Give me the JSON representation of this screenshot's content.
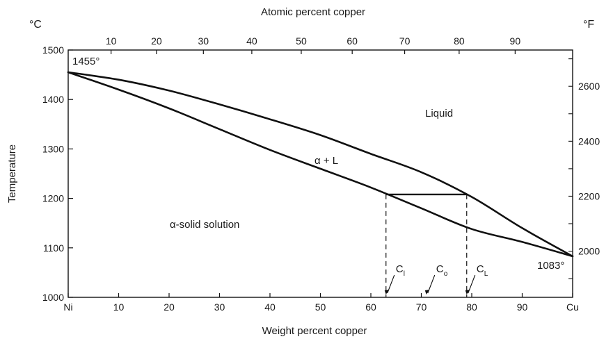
{
  "chart_data": {
    "type": "line",
    "title": "",
    "xlabel_bottom": "Weight percent copper",
    "xlabel_top": "Atomic percent copper",
    "ylabel_left": "Temperature",
    "unit_left": "°C",
    "unit_right": "°F",
    "xlim": [
      0,
      100
    ],
    "ylim": [
      1000,
      1500
    ],
    "x_ticks_bottom": [
      {
        "value": 0,
        "label": "Ni"
      },
      {
        "value": 10,
        "label": "10"
      },
      {
        "value": 20,
        "label": "20"
      },
      {
        "value": 30,
        "label": "30"
      },
      {
        "value": 40,
        "label": "40"
      },
      {
        "value": 50,
        "label": "50"
      },
      {
        "value": 60,
        "label": "60"
      },
      {
        "value": 70,
        "label": "70"
      },
      {
        "value": 80,
        "label": "80"
      },
      {
        "value": 90,
        "label": "90"
      },
      {
        "value": 100,
        "label": "Cu"
      }
    ],
    "x_ticks_top": [
      {
        "value": 8.5,
        "label": "10"
      },
      {
        "value": 17.5,
        "label": "20"
      },
      {
        "value": 26.8,
        "label": "30"
      },
      {
        "value": 36.4,
        "label": "40"
      },
      {
        "value": 46.2,
        "label": "50"
      },
      {
        "value": 56.3,
        "label": "60"
      },
      {
        "value": 66.7,
        "label": "70"
      },
      {
        "value": 77.5,
        "label": "80"
      },
      {
        "value": 88.6,
        "label": "90"
      }
    ],
    "y_ticks_left": [
      {
        "value": 1000,
        "label": "1000"
      },
      {
        "value": 1100,
        "label": "1100"
      },
      {
        "value": 1200,
        "label": "1200"
      },
      {
        "value": 1300,
        "label": "1300"
      },
      {
        "value": 1400,
        "label": "1400"
      },
      {
        "value": 1500,
        "label": "1500"
      }
    ],
    "y_ticks_right": [
      {
        "celsius": 1093.3,
        "label": "2000"
      },
      {
        "celsius": 1204.4,
        "label": "2200"
      },
      {
        "celsius": 1315.6,
        "label": "2400"
      },
      {
        "celsius": 1426.7,
        "label": "2600"
      }
    ],
    "series": [
      {
        "key": "liquidus",
        "x": [
          0,
          10,
          20,
          30,
          40,
          50,
          60,
          70,
          80,
          90,
          100
        ],
        "y": [
          1455,
          1440,
          1418,
          1390,
          1360,
          1328,
          1290,
          1253,
          1203,
          1140,
          1083
        ]
      },
      {
        "key": "solidus",
        "x": [
          0,
          10,
          20,
          30,
          40,
          50,
          60,
          70,
          80,
          90,
          100
        ],
        "y": [
          1455,
          1420,
          1382,
          1340,
          1298,
          1260,
          1222,
          1180,
          1138,
          1112,
          1083
        ]
      }
    ],
    "tie_line": {
      "x1": 63,
      "x2": 79,
      "y": 1208
    },
    "composition_markers": [
      {
        "x": 63,
        "label": "C",
        "sub": "l"
      },
      {
        "x": 71,
        "label": "C",
        "sub": "o"
      },
      {
        "x": 79,
        "label": "C",
        "sub": "L"
      }
    ],
    "annotations": {
      "ni_melting": "1455°",
      "cu_melting": "1083°",
      "liquid_region": "Liquid",
      "two_phase_region": "α + L",
      "solid_region": "α-solid solution"
    }
  }
}
